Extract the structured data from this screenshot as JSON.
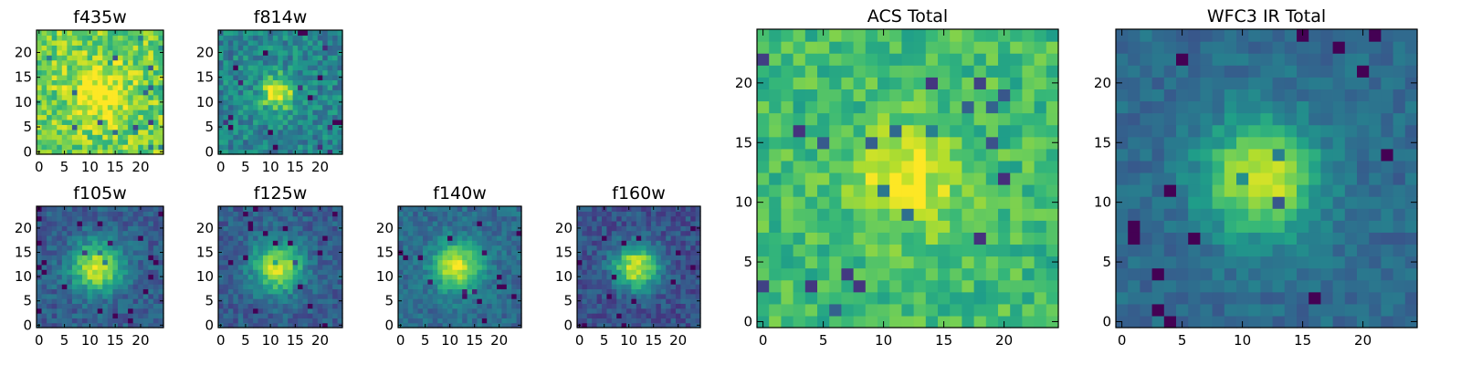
{
  "chart_data": [
    {
      "type": "heatmap",
      "title": "f435w",
      "xlim": [
        0,
        24
      ],
      "ylim": [
        0,
        24
      ],
      "xticks": [
        "0",
        "5",
        "10",
        "15",
        "20"
      ],
      "yticks": [
        "0",
        "5",
        "10",
        "15",
        "20"
      ],
      "grid": false,
      "colormap": "viridis",
      "center": [
        12,
        12
      ],
      "peak_level": 0.25,
      "sigma": 4,
      "background_level": 0.78,
      "noise_level": 0.35
    },
    {
      "type": "heatmap",
      "title": "f814w",
      "xlim": [
        0,
        24
      ],
      "ylim": [
        0,
        24
      ],
      "xticks": [
        "0",
        "5",
        "10",
        "15",
        "20"
      ],
      "yticks": [
        "0",
        "5",
        "10",
        "15",
        "20"
      ],
      "grid": false,
      "colormap": "viridis",
      "center": [
        11.5,
        12
      ],
      "peak_level": 0.55,
      "sigma": 2.5,
      "background_level": 0.45,
      "noise_level": 0.32
    },
    {
      "type": "heatmap",
      "title": "f105w",
      "xlim": [
        0,
        24
      ],
      "ylim": [
        0,
        24
      ],
      "xticks": [
        "0",
        "5",
        "10",
        "15",
        "20"
      ],
      "yticks": [
        "0",
        "5",
        "10",
        "15",
        "20"
      ],
      "grid": false,
      "colormap": "viridis",
      "center": [
        11.5,
        12
      ],
      "peak_level": 0.65,
      "sigma": 3.5,
      "background_level": 0.3,
      "noise_level": 0.22
    },
    {
      "type": "heatmap",
      "title": "f125w",
      "xlim": [
        0,
        24
      ],
      "ylim": [
        0,
        24
      ],
      "xticks": [
        "0",
        "5",
        "10",
        "15",
        "20"
      ],
      "yticks": [
        "0",
        "5",
        "10",
        "15",
        "20"
      ],
      "grid": false,
      "colormap": "viridis",
      "center": [
        11.5,
        12
      ],
      "peak_level": 0.65,
      "sigma": 3.5,
      "background_level": 0.3,
      "noise_level": 0.22
    },
    {
      "type": "heatmap",
      "title": "f140w",
      "xlim": [
        0,
        24
      ],
      "ylim": [
        0,
        24
      ],
      "xticks": [
        "0",
        "5",
        "10",
        "15",
        "20"
      ],
      "yticks": [
        "0",
        "5",
        "10",
        "15",
        "20"
      ],
      "grid": false,
      "colormap": "viridis",
      "center": [
        11.5,
        12
      ],
      "peak_level": 0.6,
      "sigma": 3.5,
      "background_level": 0.35,
      "noise_level": 0.2
    },
    {
      "type": "heatmap",
      "title": "f160w",
      "xlim": [
        0,
        24
      ],
      "ylim": [
        0,
        24
      ],
      "xticks": [
        "0",
        "5",
        "10",
        "15",
        "20"
      ],
      "yticks": [
        "0",
        "5",
        "10",
        "15",
        "20"
      ],
      "grid": false,
      "colormap": "viridis",
      "center": [
        11.5,
        12
      ],
      "peak_level": 0.7,
      "sigma": 3.2,
      "background_level": 0.25,
      "noise_level": 0.22
    },
    {
      "type": "heatmap",
      "title": "ACS Total",
      "xlim": [
        0,
        24
      ],
      "ylim": [
        0,
        24
      ],
      "xticks": [
        "0",
        "5",
        "10",
        "15",
        "20"
      ],
      "yticks": [
        "0",
        "5",
        "10",
        "15",
        "20"
      ],
      "grid": false,
      "colormap": "viridis",
      "center": [
        12,
        12
      ],
      "peak_level": 0.3,
      "sigma": 3,
      "background_level": 0.68,
      "noise_level": 0.26
    },
    {
      "type": "heatmap",
      "title": "WFC3 IR Total",
      "xlim": [
        0,
        24
      ],
      "ylim": [
        0,
        24
      ],
      "xticks": [
        "0",
        "5",
        "10",
        "15",
        "20"
      ],
      "yticks": [
        "0",
        "5",
        "10",
        "15",
        "20"
      ],
      "grid": false,
      "colormap": "viridis",
      "center": [
        11.5,
        12
      ],
      "peak_level": 0.6,
      "sigma": 3.3,
      "background_level": 0.35,
      "noise_level": 0.16
    }
  ],
  "colors": {
    "viridis": [
      "#440154",
      "#482878",
      "#3e4989",
      "#31688e",
      "#26828e",
      "#1f9e89",
      "#35b779",
      "#6ece58",
      "#b5de2b",
      "#fde725"
    ],
    "axis": "#000000",
    "background": "#ffffff"
  }
}
